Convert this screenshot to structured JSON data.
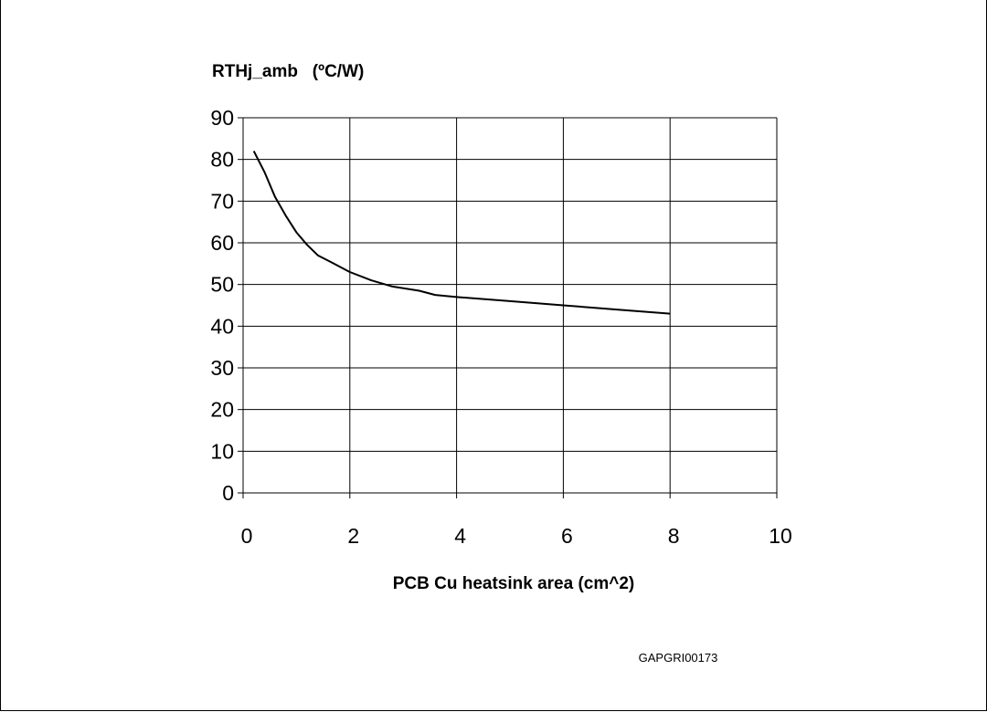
{
  "figure_code": "GAPGRI00173",
  "chart_data": {
    "type": "line",
    "title": "",
    "xlabel": "PCB Cu heatsink area (cm^2)",
    "ylabel": "RTHj_amb   (ºC/W)",
    "xlim": [
      0,
      10
    ],
    "ylim": [
      0,
      90
    ],
    "x_ticks": [
      0,
      2,
      4,
      6,
      8,
      10
    ],
    "y_ticks": [
      0,
      10,
      20,
      30,
      40,
      50,
      60,
      70,
      80,
      90
    ],
    "grid": {
      "vertical": true,
      "horizontal": true
    },
    "legend": "none",
    "line_color": "#000000",
    "series": [
      {
        "x": [
          0.2,
          0.4,
          0.6,
          0.8,
          1.0,
          1.2,
          1.4,
          1.7,
          2.0,
          2.4,
          2.8,
          3.3,
          3.6,
          4.0,
          5.0,
          6.0,
          7.0,
          8.0
        ],
        "y": [
          82,
          77,
          71,
          66.5,
          62.5,
          59.5,
          57,
          55,
          53,
          51,
          49.5,
          48.5,
          47.5,
          47,
          46,
          45,
          44,
          43
        ]
      }
    ]
  }
}
